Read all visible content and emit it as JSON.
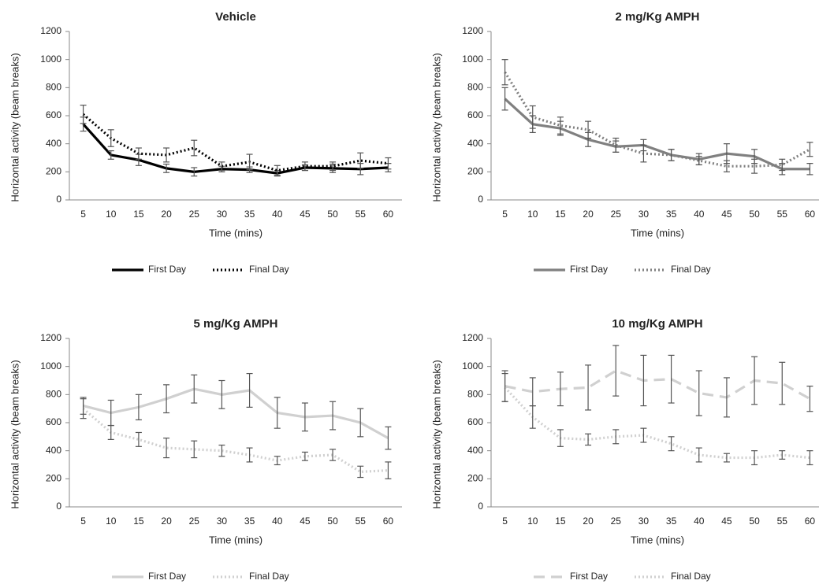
{
  "chart_data": [
    {
      "type": "line",
      "title": "Vehicle",
      "x_label": "Time (mins)",
      "y_label": "Horizontal activity (beam breaks)",
      "categories": [
        "5",
        "10",
        "15",
        "20",
        "25",
        "30",
        "35",
        "40",
        "45",
        "50",
        "55",
        "60"
      ],
      "ylim": [
        0,
        1200
      ],
      "yticks": [
        0,
        200,
        400,
        600,
        800,
        1000,
        1200
      ],
      "grid": false,
      "series": [
        {
          "name": "First Day",
          "color": "#000000",
          "dash": "solid",
          "values": [
            540,
            320,
            285,
            225,
            200,
            220,
            215,
            190,
            230,
            225,
            220,
            230
          ],
          "errors": [
            50,
            30,
            40,
            30,
            30,
            20,
            20,
            20,
            20,
            30,
            40,
            30
          ]
        },
        {
          "name": "Final Day",
          "color": "#000000",
          "dash": "dotted",
          "values": [
            610,
            440,
            330,
            320,
            370,
            240,
            270,
            210,
            240,
            240,
            280,
            260
          ],
          "errors": [
            65,
            60,
            40,
            50,
            55,
            30,
            55,
            35,
            30,
            30,
            55,
            40
          ]
        }
      ]
    },
    {
      "type": "line",
      "title": "2 mg/Kg AMPH",
      "x_label": "Time (mins)",
      "y_label": "Horizontal activity (beam breaks)",
      "categories": [
        "5",
        "10",
        "15",
        "20",
        "25",
        "30",
        "35",
        "40",
        "45",
        "50",
        "55",
        "60"
      ],
      "ylim": [
        0,
        1200
      ],
      "yticks": [
        0,
        200,
        400,
        600,
        800,
        1000,
        1200
      ],
      "grid": false,
      "series": [
        {
          "name": "First Day",
          "color": "#808080",
          "dash": "solid",
          "values": [
            720,
            540,
            510,
            430,
            380,
            390,
            320,
            290,
            330,
            310,
            220,
            220
          ],
          "errors": [
            80,
            60,
            50,
            50,
            40,
            40,
            40,
            40,
            70,
            50,
            40,
            40
          ]
        },
        {
          "name": "Final Day",
          "color": "#808080",
          "dash": "dotted",
          "values": [
            910,
            590,
            530,
            500,
            390,
            330,
            320,
            280,
            240,
            240,
            250,
            360
          ],
          "errors": [
            90,
            80,
            60,
            60,
            50,
            60,
            40,
            30,
            40,
            50,
            40,
            50
          ]
        }
      ]
    },
    {
      "type": "line",
      "title": "5 mg/Kg AMPH",
      "x_label": "Time (mins)",
      "y_label": "Horizontal activity (beam breaks)",
      "categories": [
        "5",
        "10",
        "15",
        "20",
        "25",
        "30",
        "35",
        "40",
        "45",
        "50",
        "55",
        "60"
      ],
      "ylim": [
        0,
        1200
      ],
      "yticks": [
        0,
        200,
        400,
        600,
        800,
        1000,
        1200
      ],
      "grid": false,
      "series": [
        {
          "name": "First Day",
          "color": "#d0d0d0",
          "dash": "solid",
          "values": [
            720,
            670,
            710,
            770,
            840,
            800,
            830,
            670,
            640,
            650,
            600,
            490
          ],
          "errors": [
            60,
            90,
            90,
            100,
            100,
            100,
            120,
            110,
            100,
            100,
            100,
            80
          ]
        },
        {
          "name": "Final Day",
          "color": "#d0d0d0",
          "dash": "dotted",
          "values": [
            700,
            530,
            480,
            420,
            410,
            400,
            370,
            330,
            360,
            370,
            250,
            260
          ],
          "errors": [
            70,
            50,
            50,
            70,
            60,
            40,
            50,
            30,
            30,
            40,
            40,
            60
          ]
        }
      ]
    },
    {
      "type": "line",
      "title": "10 mg/Kg AMPH",
      "x_label": "Time (mins)",
      "y_label": "Horizontal activity (beam breaks)",
      "categories": [
        "5",
        "10",
        "15",
        "20",
        "25",
        "30",
        "35",
        "40",
        "45",
        "50",
        "55",
        "60"
      ],
      "ylim": [
        0,
        1200
      ],
      "yticks": [
        0,
        200,
        400,
        600,
        800,
        1000,
        1200
      ],
      "grid": false,
      "series": [
        {
          "name": "First Day",
          "color": "#d0d0d0",
          "dash": "dashed",
          "values": [
            860,
            820,
            840,
            850,
            970,
            900,
            910,
            810,
            780,
            900,
            880,
            770
          ],
          "errors": [
            110,
            100,
            120,
            160,
            180,
            180,
            170,
            160,
            140,
            170,
            150,
            90
          ]
        },
        {
          "name": "Final Day",
          "color": "#d0d0d0",
          "dash": "dotted",
          "values": [
            850,
            640,
            490,
            480,
            500,
            510,
            450,
            370,
            350,
            350,
            370,
            350
          ],
          "errors": [
            100,
            80,
            60,
            40,
            50,
            50,
            50,
            50,
            30,
            50,
            30,
            50
          ]
        }
      ]
    }
  ]
}
